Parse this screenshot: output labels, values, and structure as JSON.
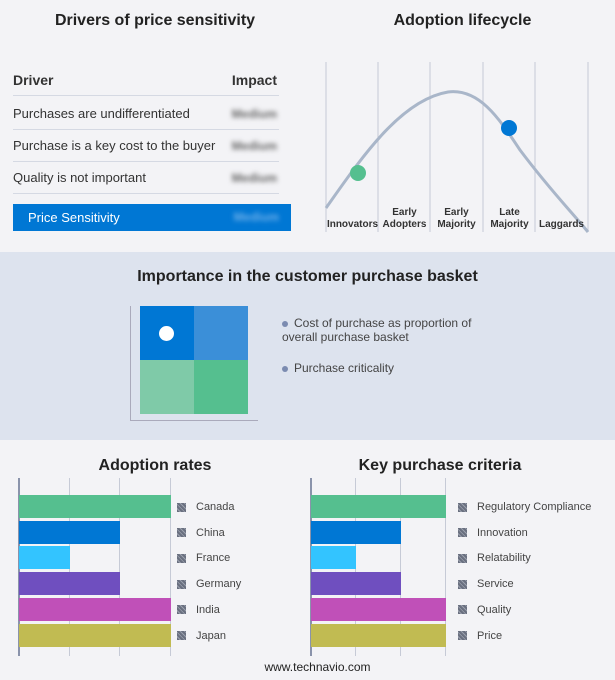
{
  "drivers": {
    "title": "Drivers of price sensitivity",
    "col_driver": "Driver",
    "col_impact": "Impact",
    "rows": [
      {
        "label": "Purchases are undifferentiated",
        "impact": "Medium"
      },
      {
        "label": "Purchase is a key cost to the buyer",
        "impact": "Medium"
      },
      {
        "label": "Quality is not important",
        "impact": "Medium"
      }
    ],
    "summary": {
      "label": "Price Sensitivity",
      "impact": "Medium"
    }
  },
  "lifecycle": {
    "title": "Adoption lifecycle",
    "stages": [
      [
        "",
        "Innovators"
      ],
      [
        "Early",
        "Adopters"
      ],
      [
        "Early",
        "Majority"
      ],
      [
        "Late",
        "Majority"
      ],
      [
        "",
        "Laggards"
      ]
    ],
    "markers": [
      {
        "stage": "Innovators",
        "color": "#55bf8f"
      },
      {
        "stage": "Late Majority",
        "color": "#0077d4"
      }
    ]
  },
  "basket": {
    "title": "Importance in the customer purchase basket",
    "legend": [
      "Cost of purchase as proportion of overall purchase basket",
      "Purchase criticality"
    ],
    "colors": [
      "#0077d4",
      "#3b8fd8",
      "#7fcaa8",
      "#55bf8f"
    ]
  },
  "chart_data": [
    {
      "type": "bar",
      "title": "Adoption rates",
      "categories": [
        "Canada",
        "China",
        "France",
        "Germany",
        "India",
        "Japan"
      ],
      "values": [
        3,
        2,
        1,
        2,
        3,
        3
      ],
      "xlim": [
        0,
        3
      ],
      "grid": true,
      "legend": "right",
      "colors": [
        "#55bf8f",
        "#0077d4",
        "#33c4ff",
        "#6f4fbf",
        "#c050b8",
        "#c1bb52"
      ]
    },
    {
      "type": "bar",
      "title": "Key purchase criteria",
      "categories": [
        "Regulatory Compliance",
        "Innovation",
        "Relatability",
        "Service",
        "Quality",
        "Price"
      ],
      "values": [
        3,
        2,
        1,
        2,
        3,
        3
      ],
      "xlim": [
        0,
        3
      ],
      "grid": true,
      "legend": "right",
      "colors": [
        "#55bf8f",
        "#0077d4",
        "#33c4ff",
        "#6f4fbf",
        "#c050b8",
        "#c1bb52"
      ]
    }
  ],
  "footer": "www.technavio.com"
}
